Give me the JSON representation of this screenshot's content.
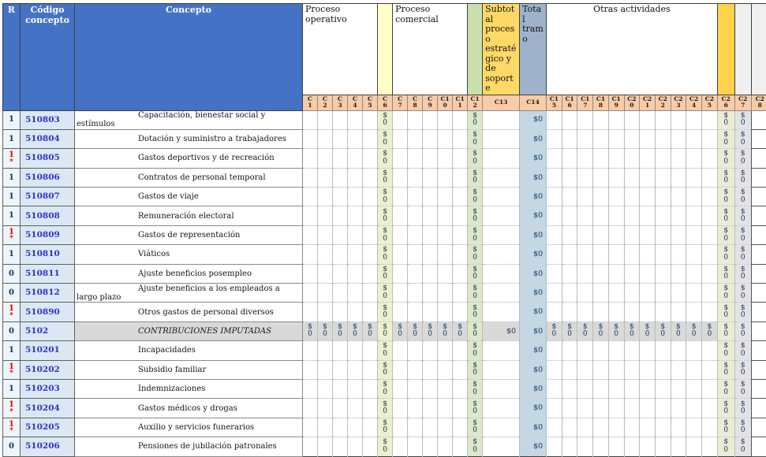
{
  "colors": {
    "header_blue": "#4472C4",
    "subheader_salmon": "#F9CBA6",
    "r_cell_bg": "#EDF5FA",
    "code_cell_bg": "#DBE8F4",
    "total_row_bg": "#D9D9D9",
    "value_text": "#17375E",
    "code_text": "#3230C8",
    "flag_red": "#E30000",
    "col_header_bg": {
      "C6": "#FEFEC9",
      "C12": "#CBDFAE",
      "C13": "#FFD966",
      "C14": "#9FB2CB",
      "C26": "#FFD24B",
      "C27": "#F0F0F0",
      "C28": "#F0F0F0"
    },
    "col_data_bg": {
      "C6": "#EBF0CE",
      "C12": "#DDE8C9",
      "C14": "#C3D7E4",
      "C26": "#EAEDD3",
      "C27": "#E3E3E6",
      "C28": "#FFFFFF"
    }
  },
  "table": {
    "corner": [
      "R",
      "Código concepto",
      "Concepto"
    ],
    "groups": [
      {
        "id": "proceso-operativo",
        "label": "Proceso operativo",
        "cols": [
          "C1",
          "C2",
          "C3",
          "C4",
          "C5"
        ],
        "align": "left"
      },
      {
        "id": "c6-spacer",
        "label": "",
        "cols": [
          "C6"
        ],
        "align": "left"
      },
      {
        "id": "proceso-comercial",
        "label": "Proceso comercial",
        "cols": [
          "C7",
          "C8",
          "C9",
          "C10",
          "C11"
        ],
        "align": "left"
      },
      {
        "id": "c12-spacer",
        "label": "",
        "cols": [
          "C12"
        ],
        "align": "left"
      },
      {
        "id": "subtotal-proceso-estrategico",
        "label": "Subtotal proceso estratégico y de soporte",
        "cols": [
          "C13"
        ],
        "align": "left"
      },
      {
        "id": "total-tramo",
        "label": "Total tramo",
        "cols": [
          "C14"
        ],
        "align": "left"
      },
      {
        "id": "otras-actividades",
        "label": "Otras actividades",
        "cols": [
          "C15",
          "C16",
          "C17",
          "C18",
          "C19",
          "C20",
          "C21",
          "C22",
          "C23",
          "C24",
          "C25"
        ],
        "align": "center"
      },
      {
        "id": "c26-spacer",
        "label": "",
        "cols": [
          "C26"
        ],
        "align": "left"
      },
      {
        "id": "c27-spacer",
        "label": "",
        "cols": [
          "C27"
        ],
        "align": "left"
      },
      {
        "id": "c28-spacer",
        "label": "",
        "cols": [
          "C28"
        ],
        "align": "left"
      }
    ],
    "columns": [
      {
        "id": "C1",
        "label": "C\n1"
      },
      {
        "id": "C2",
        "label": "C\n2"
      },
      {
        "id": "C3",
        "label": "C\n3"
      },
      {
        "id": "C4",
        "label": "C\n4"
      },
      {
        "id": "C5",
        "label": "C\n5"
      },
      {
        "id": "C6",
        "label": "C\n6"
      },
      {
        "id": "C7",
        "label": "C\n7"
      },
      {
        "id": "C8",
        "label": "C\n8"
      },
      {
        "id": "C9",
        "label": "C\n9"
      },
      {
        "id": "C10",
        "label": "C1\n0"
      },
      {
        "id": "C11",
        "label": "C1\n1"
      },
      {
        "id": "C12",
        "label": "C1\n2"
      },
      {
        "id": "C13",
        "label": "C13",
        "wide": true
      },
      {
        "id": "C14",
        "label": "C14",
        "wide": true
      },
      {
        "id": "C15",
        "label": "C1\n5"
      },
      {
        "id": "C16",
        "label": "C1\n6"
      },
      {
        "id": "C17",
        "label": "C1\n7"
      },
      {
        "id": "C18",
        "label": "C1\n8"
      },
      {
        "id": "C19",
        "label": "C1\n9"
      },
      {
        "id": "C20",
        "label": "C2\n0"
      },
      {
        "id": "C21",
        "label": "C2\n1"
      },
      {
        "id": "C22",
        "label": "C2\n2"
      },
      {
        "id": "C23",
        "label": "C2\n3"
      },
      {
        "id": "C24",
        "label": "C2\n4"
      },
      {
        "id": "C25",
        "label": "C2\n5"
      },
      {
        "id": "C26",
        "label": "C2\n6"
      },
      {
        "id": "C27",
        "label": "C2\n7"
      },
      {
        "id": "C28",
        "label": "C2\n8"
      }
    ],
    "rows": [
      {
        "r": "1",
        "code": "510803",
        "concept": "Capacitación, bienestar social y estímulos",
        "values": {
          "C6": "$ 0",
          "C12": "$ 0",
          "C14": "$0",
          "C26": "$ 0",
          "C27": "$ 0"
        }
      },
      {
        "r": "1",
        "code": "510804",
        "concept": "Dotación y suministro a trabajadores",
        "values": {
          "C6": "$ 0",
          "C12": "$ 0",
          "C14": "$0",
          "C26": "$ 0",
          "C27": "$ 0"
        }
      },
      {
        "r": "1",
        "mark": "*",
        "code": "510805",
        "concept": "Gastos deportivos y de recreación",
        "values": {
          "C6": "$ 0",
          "C12": "$ 0",
          "C14": "$0",
          "C26": "$ 0",
          "C27": "$ 0"
        }
      },
      {
        "r": "1",
        "code": "510806",
        "concept": "Contratos de personal temporal",
        "values": {
          "C6": "$ 0",
          "C12": "$ 0",
          "C14": "$0",
          "C26": "$ 0",
          "C27": "$ 0"
        }
      },
      {
        "r": "1",
        "code": "510807",
        "concept": "Gastos de viaje",
        "values": {
          "C6": "$ 0",
          "C12": "$ 0",
          "C14": "$0",
          "C26": "$ 0",
          "C27": "$ 0"
        }
      },
      {
        "r": "1",
        "code": "510808",
        "concept": "Remuneración electoral",
        "values": {
          "C6": "$ 0",
          "C12": "$ 0",
          "C14": "$0",
          "C26": "$ 0",
          "C27": "$ 0"
        }
      },
      {
        "r": "1",
        "mark": "*",
        "code": "510809",
        "concept": "Gastos de representación",
        "values": {
          "C6": "$ 0",
          "C12": "$ 0",
          "C14": "$0",
          "C26": "$ 0",
          "C27": "$ 0"
        }
      },
      {
        "r": "1",
        "code": "510810",
        "concept": "Viáticos",
        "values": {
          "C6": "$ 0",
          "C12": "$ 0",
          "C14": "$0",
          "C26": "$ 0",
          "C27": "$ 0"
        }
      },
      {
        "r": "0",
        "code": "510811",
        "concept": "Ajuste beneficios posempleo",
        "values": {
          "C6": "$ 0",
          "C12": "$ 0",
          "C14": "$0",
          "C26": "$ 0",
          "C27": "$ 0"
        }
      },
      {
        "r": "0",
        "code": "510812",
        "concept": "Ajuste beneficios a los empleados a largo plazo",
        "values": {
          "C6": "$ 0",
          "C12": "$ 0",
          "C14": "$0",
          "C26": "$ 0",
          "C27": "$ 0"
        }
      },
      {
        "r": "1",
        "mark": "*",
        "code": "510890",
        "concept": "Otros gastos de personal diversos",
        "values": {
          "C6": "$ 0",
          "C12": "$ 0",
          "C14": "$0",
          "C26": "$ 0",
          "C27": "$ 0"
        }
      },
      {
        "r": "0",
        "code": "5102",
        "concept": "CONTRIBUCIONES IMPUTADAS",
        "total": true,
        "values": {
          "C1": "$ 0",
          "C2": "$ 0",
          "C3": "$ 0",
          "C4": "$ 0",
          "C5": "$ 0",
          "C6": "$ 0",
          "C7": "$ 0",
          "C8": "$ 0",
          "C9": "$ 0",
          "C10": "$ 0",
          "C11": "$ 0",
          "C12": "$ 0",
          "C13": "$0",
          "C14": "$0",
          "C15": "$ 0",
          "C16": "$ 0",
          "C17": "$ 0",
          "C18": "$ 0",
          "C19": "$ 0",
          "C20": "$ 0",
          "C21": "$ 0",
          "C22": "$ 0",
          "C23": "$ 0",
          "C24": "$ 0",
          "C25": "$ 0",
          "C26": "$ 0",
          "C27": "$ 0"
        }
      },
      {
        "r": "1",
        "code": "510201",
        "concept": "Incapacidades",
        "values": {
          "C6": "$ 0",
          "C12": "$ 0",
          "C14": "$0",
          "C26": "$ 0",
          "C27": "$ 0"
        }
      },
      {
        "r": "1",
        "mark": "*",
        "code": "510202",
        "concept": "Subsidio familiar",
        "values": {
          "C6": "$ 0",
          "C12": "$ 0",
          "C14": "$0",
          "C26": "$ 0",
          "C27": "$ 0"
        }
      },
      {
        "r": "1",
        "code": "510203",
        "concept": "Indemnizaciones",
        "values": {
          "C6": "$ 0",
          "C12": "$ 0",
          "C14": "$0",
          "C26": "$ 0",
          "C27": "$ 0"
        }
      },
      {
        "r": "1",
        "mark": "*",
        "code": "510204",
        "concept": "Gastos médicos y drogas",
        "values": {
          "C6": "$ 0",
          "C12": "$ 0",
          "C14": "$0",
          "C26": "$ 0",
          "C27": "$ 0"
        }
      },
      {
        "r": "1",
        "mark": "*",
        "code": "510205",
        "concept": "Auxilio y servicios funerarios",
        "values": {
          "C6": "$ 0",
          "C12": "$ 0",
          "C14": "$0",
          "C26": "$ 0",
          "C27": "$ 0"
        }
      },
      {
        "r": "0",
        "code": "510206",
        "concept": "Pensiones de jubilación patronales",
        "values": {
          "C6": "$ 0",
          "C12": "$ 0",
          "C14": "$0",
          "C26": "$ 0",
          "C27": "$ 0"
        }
      }
    ]
  }
}
